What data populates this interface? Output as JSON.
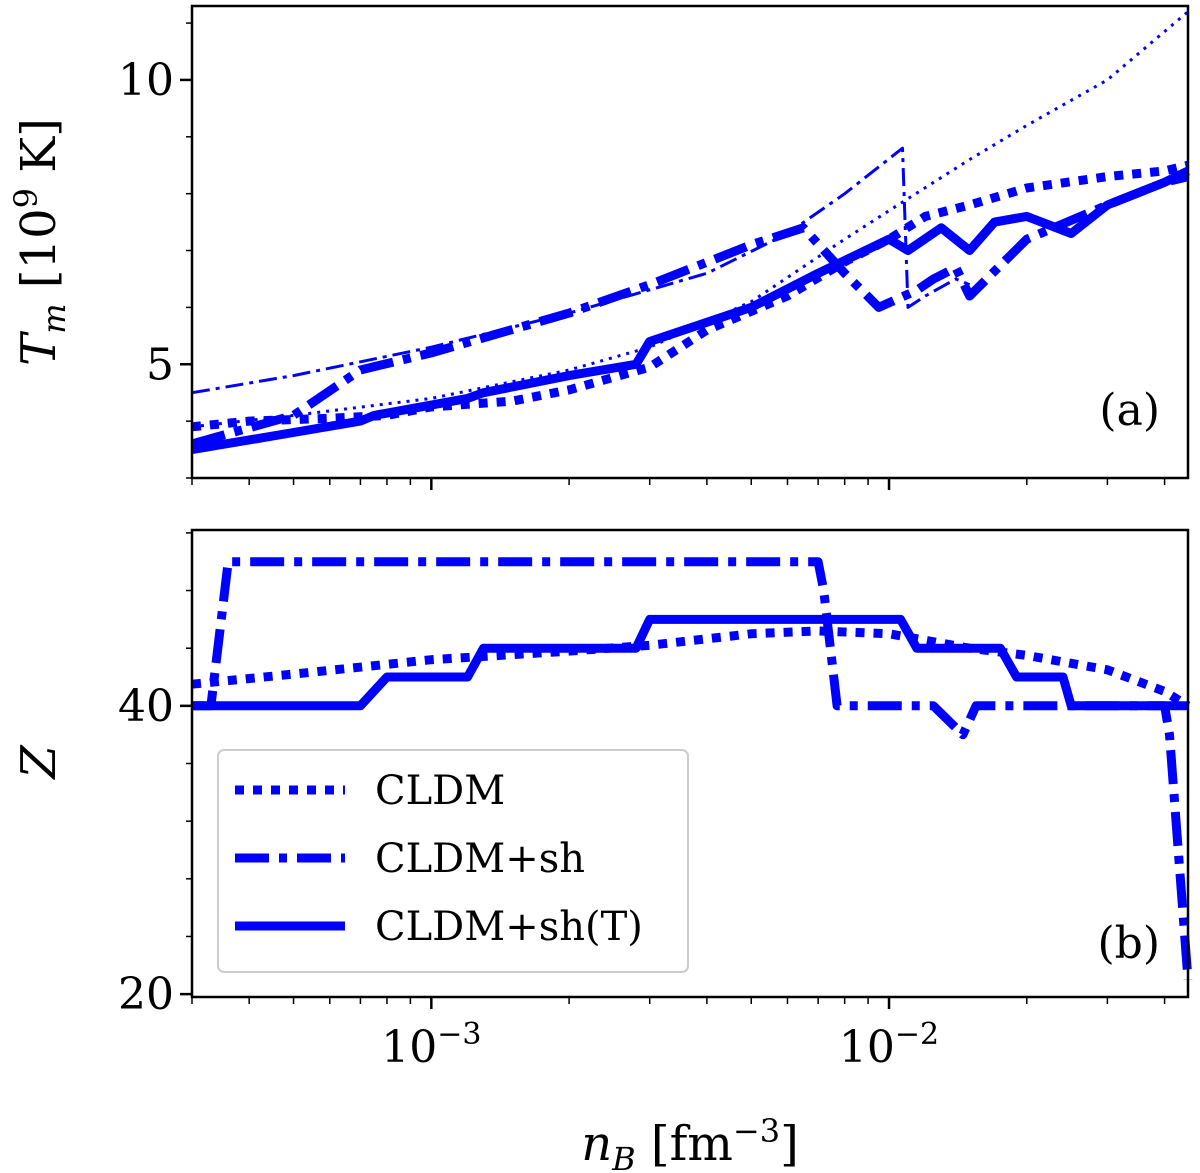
{
  "chart_data": [
    {
      "type": "line",
      "panel_tag": "(a)",
      "ylabel": "T_m [10^9 K]",
      "xlabel": "n_B [fm^-3]",
      "xscale": "log",
      "xlim": [
        0.0003,
        0.045
      ],
      "ylim": [
        3.0,
        11.3
      ],
      "yticks": [
        5,
        10
      ],
      "ytick_labels": [
        "5",
        "10"
      ],
      "series": [
        {
          "name": "CLDM",
          "style": "dotted",
          "x": [
            0.0003,
            0.0004,
            0.0006,
            0.0008,
            0.001,
            0.0015,
            0.002,
            0.003,
            0.004,
            0.006,
            0.008,
            0.01,
            0.012,
            0.015,
            0.02,
            0.03,
            0.04,
            0.045
          ],
          "y": [
            3.9,
            4.0,
            4.05,
            4.1,
            4.25,
            4.35,
            4.55,
            4.95,
            5.6,
            6.2,
            6.8,
            7.2,
            7.6,
            7.8,
            8.1,
            8.3,
            8.4,
            8.5
          ]
        },
        {
          "name": "CLDM+sh",
          "style": "dashdot",
          "x": [
            0.0003,
            0.0005,
            0.0007,
            0.001,
            0.002,
            0.003,
            0.005,
            0.0065,
            0.008,
            0.0095,
            0.0115,
            0.0125,
            0.014,
            0.015,
            0.02,
            0.03,
            0.04,
            0.045
          ],
          "y": [
            3.6,
            4.1,
            4.9,
            5.2,
            5.9,
            6.4,
            7.1,
            7.4,
            6.6,
            6.0,
            6.3,
            6.5,
            6.7,
            6.2,
            7.2,
            7.8,
            8.2,
            8.3
          ]
        },
        {
          "name": "",
          "style": "thin-dashdot",
          "x": [
            0.0003,
            0.0005,
            0.001,
            0.002,
            0.004,
            0.006,
            0.008,
            0.0107,
            0.011,
            0.012,
            0.014,
            0.015
          ],
          "y": [
            4.5,
            4.8,
            5.3,
            5.9,
            6.6,
            7.3,
            8.0,
            8.8,
            6.0,
            6.2,
            6.5,
            6.4
          ]
        },
        {
          "name": "",
          "style": "thin-dotted",
          "x": [
            0.0003,
            0.0005,
            0.001,
            0.002,
            0.003,
            0.005,
            0.008,
            0.01,
            0.015,
            0.02,
            0.03,
            0.045
          ],
          "y": [
            3.9,
            4.1,
            4.4,
            4.9,
            5.3,
            6.1,
            7.2,
            7.7,
            8.6,
            9.2,
            10.0,
            11.2
          ]
        },
        {
          "name": "CLDM+sh(T)",
          "style": "solid",
          "x": [
            0.0003,
            0.0005,
            0.0007,
            0.00075,
            0.0012,
            0.0013,
            0.002,
            0.0028,
            0.003,
            0.005,
            0.007,
            0.01,
            0.011,
            0.013,
            0.015,
            0.017,
            0.02,
            0.025,
            0.03,
            0.04,
            0.045
          ],
          "y": [
            3.5,
            3.8,
            4.0,
            4.1,
            4.4,
            4.5,
            4.8,
            5.0,
            5.4,
            6.0,
            6.6,
            7.2,
            7.0,
            7.4,
            7.0,
            7.5,
            7.6,
            7.3,
            7.8,
            8.2,
            8.4
          ]
        }
      ]
    },
    {
      "type": "line",
      "panel_tag": "(b)",
      "ylabel": "Z",
      "xlabel": "n_B [fm^-3]",
      "xscale": "log",
      "xlim": [
        0.0003,
        0.045
      ],
      "ylim": [
        19.8,
        52.2
      ],
      "yticks": [
        20,
        40
      ],
      "ytick_labels": [
        "20",
        "40"
      ],
      "xticks": [
        0.001,
        0.01
      ],
      "xtick_labels": [
        "10^-3",
        "10^-2"
      ],
      "series": [
        {
          "name": "CLDM",
          "style": "dotted",
          "x": [
            0.0003,
            0.0005,
            0.001,
            0.002,
            0.003,
            0.005,
            0.007,
            0.01,
            0.015,
            0.02,
            0.03,
            0.04,
            0.045
          ],
          "y": [
            41.5,
            42.2,
            43.2,
            43.8,
            44.2,
            45.0,
            45.2,
            45.0,
            44.0,
            43.5,
            42.5,
            41.0,
            40.0
          ]
        },
        {
          "name": "CLDM+sh",
          "style": "dashdot",
          "x": [
            0.0003,
            0.00033,
            0.00036,
            0.001,
            0.003,
            0.007,
            0.0072,
            0.0077,
            0.01,
            0.0125,
            0.0145,
            0.0155,
            0.02,
            0.04,
            0.041,
            0.045
          ],
          "y": [
            40,
            40,
            50,
            50,
            50,
            50,
            48,
            40,
            40,
            40,
            38,
            40,
            40,
            40,
            38,
            21
          ]
        },
        {
          "name": "CLDM+sh(T)",
          "style": "solid",
          "x": [
            0.0003,
            0.0007,
            0.0008,
            0.0012,
            0.0013,
            0.0028,
            0.003,
            0.0106,
            0.0115,
            0.0175,
            0.019,
            0.024,
            0.025,
            0.045
          ],
          "y": [
            40,
            40,
            42,
            42,
            44,
            44,
            46,
            46,
            44,
            44,
            42,
            42,
            40,
            40
          ]
        }
      ]
    }
  ],
  "legend": {
    "entries": [
      {
        "label": "CLDM",
        "style": "dotted"
      },
      {
        "label": "CLDM+sh",
        "style": "dashdot"
      },
      {
        "label": "CLDM+sh(T)",
        "style": "solid"
      }
    ]
  },
  "colors": {
    "series": "#0000ff",
    "axes": "#000000",
    "legend_border": "#cccccc"
  }
}
